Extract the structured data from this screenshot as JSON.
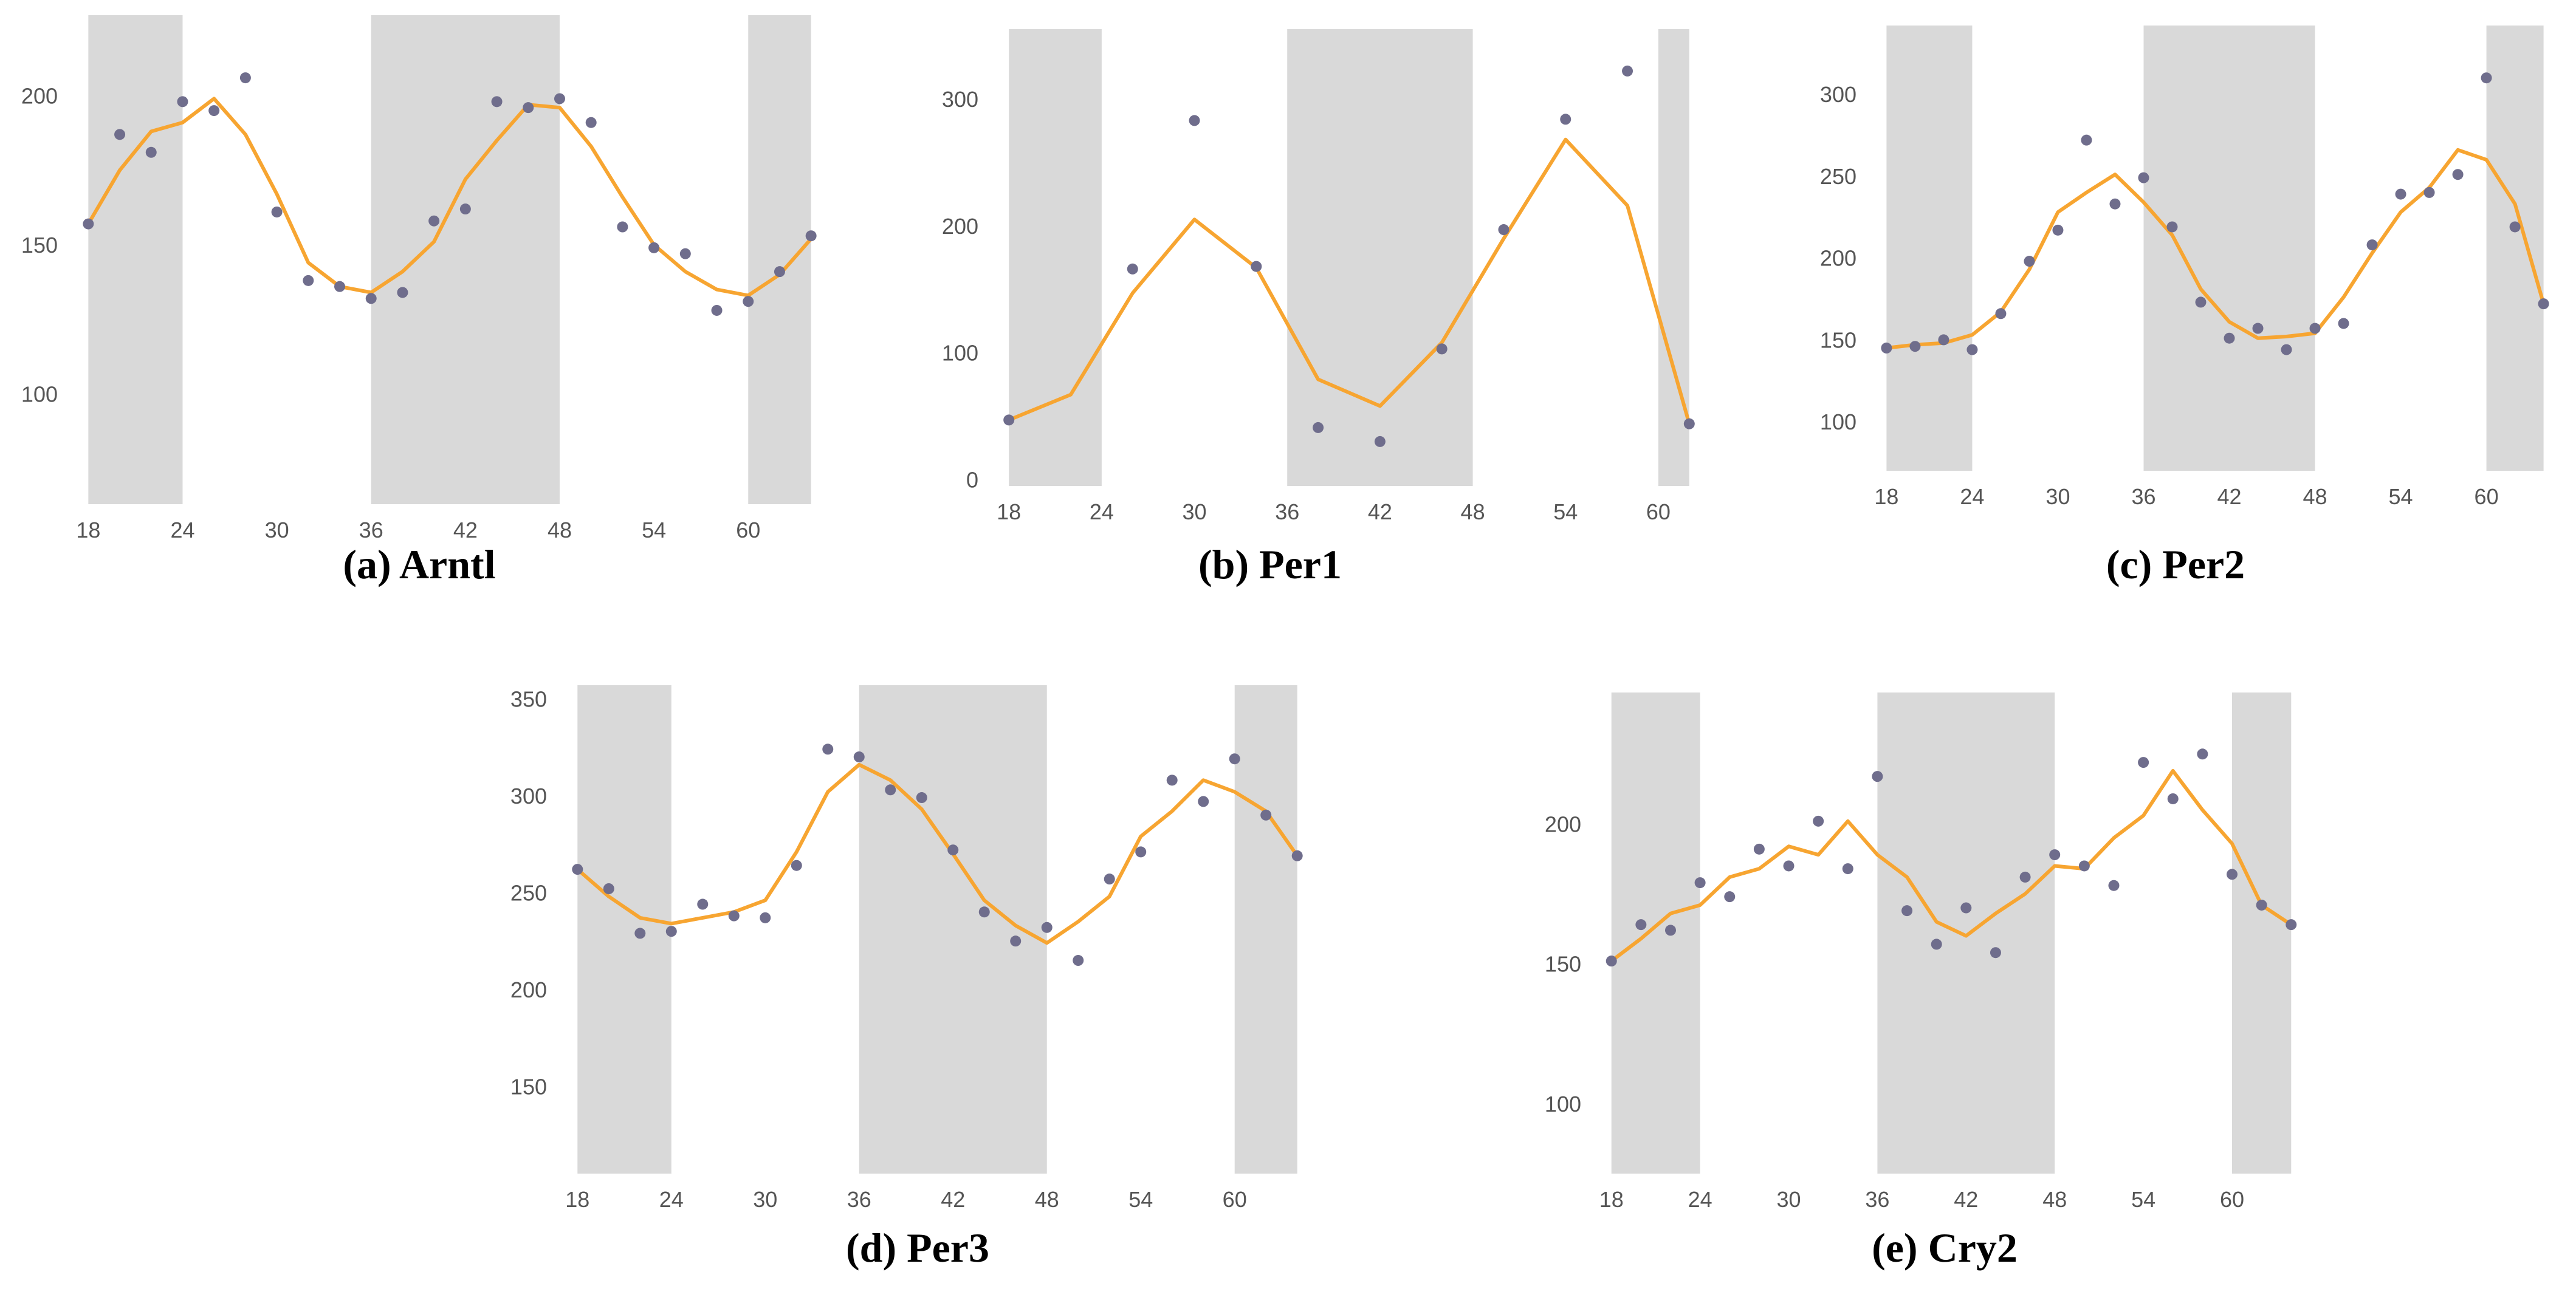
{
  "colors": {
    "shade": "#d9d9d9",
    "line": "#f7a531",
    "point": "#6f6d8c",
    "tick": "#555555"
  },
  "chart_data": [
    {
      "id": "arntl",
      "type": "line",
      "title": "(a) Arntl",
      "xlim": [
        17.6,
        64.4
      ],
      "ylim": [
        63,
        227
      ],
      "xticks": [
        18,
        24,
        30,
        36,
        42,
        48,
        54,
        60
      ],
      "yticks": [
        100,
        150,
        200
      ],
      "shaded": [
        [
          18,
          24
        ],
        [
          36,
          48
        ],
        [
          60,
          64
        ]
      ],
      "fit": {
        "x": [
          18,
          20,
          22,
          24,
          26,
          28,
          30,
          32,
          34,
          36,
          38,
          40,
          42,
          44,
          46,
          48,
          50,
          52,
          54,
          56,
          58,
          60,
          62,
          64
        ],
        "y": [
          157,
          175,
          188,
          191,
          199,
          187,
          167,
          144,
          136,
          134,
          141,
          151,
          172,
          185,
          197,
          196,
          183,
          166,
          150,
          141,
          135,
          133,
          140,
          152
        ]
      },
      "points": {
        "x": [
          18,
          20,
          22,
          24,
          26,
          28,
          30,
          32,
          34,
          36,
          38,
          40,
          42,
          44,
          46,
          48,
          50,
          52,
          54,
          56,
          58,
          60,
          62,
          64
        ],
        "y": [
          157,
          187,
          181,
          198,
          195,
          206,
          161,
          138,
          136,
          132,
          134,
          158,
          162,
          198,
          196,
          199,
          191,
          156,
          149,
          147,
          128,
          131,
          141,
          153
        ]
      }
    },
    {
      "id": "per1",
      "type": "line",
      "title": "(b) Per1",
      "xlim": [
        17.6,
        62.4
      ],
      "ylim": [
        -5,
        355
      ],
      "xticks": [
        18,
        24,
        30,
        36,
        42,
        48,
        54,
        60
      ],
      "yticks": [
        0,
        100,
        200,
        300
      ],
      "shaded": [
        [
          18,
          24
        ],
        [
          36,
          48
        ],
        [
          60,
          62
        ]
      ],
      "fit": {
        "x": [
          18,
          22,
          26,
          30,
          34,
          38,
          42,
          46,
          50,
          54,
          58,
          62
        ],
        "y": [
          47,
          67,
          147,
          205,
          167,
          79,
          58,
          108,
          190,
          268,
          216,
          44
        ]
      },
      "points": {
        "x": [
          18,
          26,
          30,
          34,
          38,
          42,
          46,
          50,
          54,
          58,
          62
        ],
        "y": [
          47,
          166,
          283,
          168,
          41,
          30,
          103,
          197,
          284,
          322,
          44
        ]
      }
    },
    {
      "id": "per2",
      "type": "line",
      "title": "(c) Per2",
      "xlim": [
        17.6,
        64.4
      ],
      "ylim": [
        70,
        342
      ],
      "xticks": [
        18,
        24,
        30,
        36,
        42,
        48,
        54,
        60
      ],
      "yticks": [
        100,
        150,
        200,
        250,
        300
      ],
      "shaded": [
        [
          18,
          24
        ],
        [
          36,
          48
        ],
        [
          60,
          64
        ]
      ],
      "fit": {
        "x": [
          18,
          20,
          22,
          24,
          26,
          28,
          30,
          32,
          34,
          36,
          38,
          40,
          42,
          44,
          46,
          48,
          50,
          52,
          54,
          56,
          58,
          60,
          62,
          64
        ],
        "y": [
          145,
          147,
          148,
          153,
          167,
          193,
          228,
          240,
          251,
          234,
          214,
          181,
          161,
          151,
          152,
          154,
          176,
          203,
          228,
          243,
          266,
          260,
          233,
          172
        ]
      },
      "points": {
        "x": [
          18,
          20,
          22,
          24,
          26,
          28,
          30,
          32,
          34,
          36,
          38,
          40,
          42,
          44,
          46,
          48,
          50,
          52,
          54,
          56,
          58,
          60,
          62,
          64
        ],
        "y": [
          145,
          146,
          150,
          144,
          166,
          198,
          217,
          272,
          233,
          249,
          219,
          173,
          151,
          157,
          144,
          157,
          160,
          208,
          239,
          240,
          251,
          310,
          219,
          172
        ]
      }
    },
    {
      "id": "per3",
      "type": "line",
      "title": "(d) Per3",
      "xlim": [
        17.6,
        64.4
      ],
      "ylim": [
        105,
        357
      ],
      "xticks": [
        18,
        24,
        30,
        36,
        42,
        48,
        54,
        60
      ],
      "yticks": [
        150,
        200,
        250,
        300,
        350
      ],
      "shaded": [
        [
          18,
          24
        ],
        [
          36,
          48
        ],
        [
          60,
          64
        ]
      ],
      "fit": {
        "x": [
          18,
          20,
          22,
          24,
          26,
          28,
          30,
          32,
          34,
          36,
          38,
          40,
          42,
          44,
          46,
          48,
          50,
          52,
          54,
          56,
          58,
          60,
          62,
          64
        ],
        "y": [
          262,
          248,
          237,
          234,
          237,
          240,
          246,
          271,
          302,
          316,
          308,
          293,
          270,
          246,
          233,
          224,
          235,
          248,
          279,
          292,
          308,
          302,
          292,
          269
        ]
      },
      "points": {
        "x": [
          18,
          20,
          22,
          24,
          26,
          28,
          30,
          32,
          34,
          36,
          38,
          40,
          42,
          44,
          46,
          48,
          50,
          52,
          54,
          56,
          58,
          60,
          62,
          64
        ],
        "y": [
          262,
          252,
          229,
          230,
          244,
          238,
          237,
          264,
          324,
          320,
          303,
          299,
          272,
          240,
          225,
          232,
          215,
          257,
          271,
          308,
          297,
          319,
          290,
          269
        ]
      }
    },
    {
      "id": "cry2",
      "type": "line",
      "title": "(e) Cry2",
      "xlim": [
        17.6,
        64.4
      ],
      "ylim": [
        75,
        247
      ],
      "xticks": [
        18,
        24,
        30,
        36,
        42,
        48,
        54,
        60
      ],
      "yticks": [
        100,
        150,
        200
      ],
      "shaded": [
        [
          18,
          24
        ],
        [
          36,
          48
        ],
        [
          60,
          64
        ]
      ],
      "fit": {
        "x": [
          18,
          20,
          22,
          24,
          26,
          28,
          30,
          32,
          34,
          36,
          38,
          40,
          42,
          44,
          46,
          48,
          50,
          52,
          54,
          56,
          58,
          60,
          62,
          64
        ],
        "y": [
          151,
          159,
          168,
          171,
          181,
          184,
          192,
          189,
          201,
          189,
          181,
          165,
          160,
          168,
          175,
          185,
          184,
          195,
          203,
          219,
          205,
          193,
          171,
          164
        ]
      },
      "points": {
        "x": [
          18,
          20,
          22,
          24,
          26,
          28,
          30,
          32,
          34,
          36,
          38,
          40,
          42,
          44,
          46,
          48,
          50,
          52,
          54,
          56,
          58,
          60,
          62,
          64
        ],
        "y": [
          151,
          164,
          162,
          179,
          174,
          191,
          185,
          201,
          184,
          217,
          169,
          157,
          170,
          154,
          181,
          189,
          185,
          178,
          222,
          209,
          225,
          182,
          171,
          164
        ]
      }
    }
  ]
}
